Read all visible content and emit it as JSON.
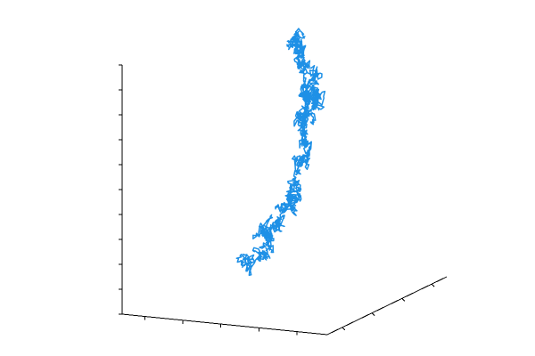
{
  "chart_data": {
    "type": "line",
    "projection": "3d",
    "title": "",
    "xlabel": "",
    "ylabel": "",
    "zlabel": "",
    "tick_labels_shown": false,
    "grid": false,
    "legend": "none",
    "x_tick_count": 5,
    "y_tick_count": 4,
    "z_tick_count": 10,
    "series": [
      {
        "color": "#1E90E6",
        "rng_seed": 7,
        "steps": 1500,
        "description_anchors": {
          "start": [
            -0.48,
            0.12,
            0.08
          ],
          "waypoints": [
            [
              -0.48,
              0.12,
              0.08
            ],
            [
              -0.3,
              0.12,
              0.14
            ],
            [
              -0.26,
              0.2,
              0.22
            ],
            [
              -0.14,
              0.16,
              0.3
            ],
            [
              0.0,
              0.12,
              0.36
            ],
            [
              0.02,
              0.18,
              0.46
            ],
            [
              0.1,
              0.22,
              0.56
            ],
            [
              0.04,
              0.2,
              0.66
            ],
            [
              0.08,
              0.26,
              0.72
            ],
            [
              0.12,
              0.18,
              0.78
            ],
            [
              0.26,
              0.14,
              0.76
            ],
            [
              0.22,
              0.14,
              0.86
            ],
            [
              0.06,
              0.24,
              0.9
            ],
            [
              0.0,
              0.22,
              0.98
            ],
            [
              -0.1,
              0.3,
              1.0
            ]
          ]
        }
      }
    ]
  }
}
